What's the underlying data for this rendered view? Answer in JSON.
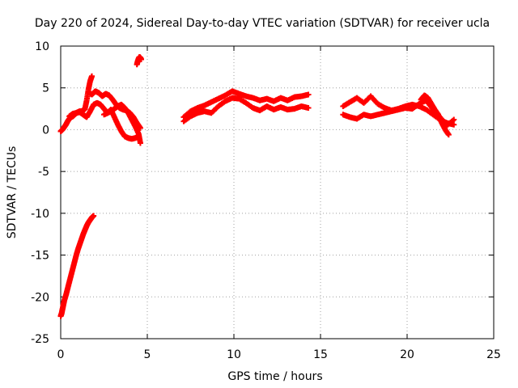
{
  "chart_data": {
    "type": "scatter",
    "title": "Day 220 of 2024, Sidereal Day-to-day VTEC variation (SDTVAR) for receiver ucla",
    "xlabel": "GPS time / hours",
    "ylabel": "SDTVAR / TECUs",
    "xlim": [
      0,
      25
    ],
    "ylim": [
      -25,
      10
    ],
    "xticks": [
      "0",
      "5",
      "10",
      "15",
      "20",
      "25"
    ],
    "yticks": [
      "10",
      "5",
      "0",
      "-5",
      "-10",
      "-15",
      "-20",
      "-25"
    ],
    "xtick_values": [
      0,
      5,
      10,
      15,
      20,
      25
    ],
    "ytick_values": [
      10,
      5,
      0,
      -5,
      -10,
      -15,
      -20,
      -25
    ],
    "grid": true,
    "marker": "plus",
    "series": [
      {
        "name": "SDTVAR",
        "color": "#ff0000",
        "segments": [
          {
            "x": [
              0.0,
              0.05,
              0.1,
              0.15,
              0.2,
              0.3,
              0.4,
              0.5,
              0.6,
              0.7,
              0.8,
              0.9,
              1.0,
              1.1,
              1.2,
              1.3,
              1.4,
              1.5,
              1.6,
              1.7,
              1.8,
              1.9
            ],
            "y": [
              -22.3,
              -22.0,
              -21.5,
              -21.0,
              -20.5,
              -19.8,
              -19.0,
              -18.2,
              -17.4,
              -16.6,
              -15.8,
              -15.0,
              -14.3,
              -13.7,
              -13.1,
              -12.5,
              -12.0,
              -11.5,
              -11.1,
              -10.8,
              -10.5,
              -10.3
            ]
          },
          {
            "x": [
              0.0,
              0.1,
              0.2,
              0.3,
              0.4,
              0.5,
              0.6,
              0.7,
              0.8,
              0.9,
              1.0,
              1.1,
              1.2,
              1.3,
              1.4,
              1.5,
              1.6,
              1.7,
              1.8
            ],
            "y": [
              -0.2,
              0.0,
              0.3,
              0.6,
              1.0,
              1.3,
              1.5,
              1.6,
              1.8,
              2.0,
              2.1,
              2.2,
              2.2,
              2.3,
              2.5,
              3.5,
              4.8,
              5.8,
              6.4
            ]
          },
          {
            "x": [
              0.5,
              0.7,
              0.9,
              1.1,
              1.3,
              1.5,
              1.7,
              1.9,
              2.1,
              2.3,
              2.5,
              2.7,
              2.9,
              3.1,
              3.3,
              3.5,
              3.7,
              3.9,
              4.1,
              4.3,
              4.5,
              4.6
            ],
            "y": [
              1.6,
              1.9,
              2.0,
              2.1,
              1.8,
              1.5,
              2.2,
              3.0,
              3.2,
              3.0,
              2.5,
              2.0,
              2.2,
              2.5,
              2.8,
              3.0,
              2.6,
              2.0,
              1.2,
              0.4,
              -0.5,
              -1.6
            ]
          },
          {
            "x": [
              1.6,
              1.8,
              2.0,
              2.2,
              2.4,
              2.6,
              2.8,
              3.0,
              3.2,
              3.4,
              3.6,
              3.8,
              4.0,
              4.2,
              4.4,
              4.6
            ],
            "y": [
              4.5,
              4.2,
              4.6,
              4.4,
              4.0,
              4.3,
              4.1,
              3.6,
              3.0,
              2.6,
              2.4,
              2.3,
              2.0,
              1.5,
              0.8,
              0.2
            ]
          },
          {
            "x": [
              2.5,
              2.7,
              2.9,
              3.1,
              3.3,
              3.5,
              3.7,
              3.9,
              4.1,
              4.3,
              4.5
            ],
            "y": [
              1.8,
              2.0,
              2.4,
              1.5,
              0.6,
              -0.2,
              -0.8,
              -1.0,
              -1.1,
              -1.0,
              -0.8
            ]
          },
          {
            "x": [
              4.4,
              4.45,
              4.5,
              4.55,
              4.6,
              4.65
            ],
            "y": [
              7.8,
              8.2,
              8.5,
              8.7,
              8.6,
              8.4
            ]
          },
          {
            "x": [
              7.1,
              7.5,
              7.9,
              8.3,
              8.7,
              9.1,
              9.5,
              9.9,
              10.3,
              10.7,
              11.1,
              11.5,
              11.9,
              12.3,
              12.7,
              13.1,
              13.5,
              13.9,
              14.3
            ],
            "y": [
              1.5,
              2.2,
              2.6,
              2.9,
              3.3,
              3.7,
              4.1,
              4.6,
              4.3,
              4.0,
              3.8,
              3.5,
              3.7,
              3.4,
              3.8,
              3.5,
              3.9,
              4.0,
              4.2
            ]
          },
          {
            "x": [
              7.1,
              7.5,
              7.9,
              8.3,
              8.7,
              9.1,
              9.5,
              9.9,
              10.3,
              10.7,
              11.1,
              11.5,
              11.9,
              12.3,
              12.7,
              13.1,
              13.5,
              13.9,
              14.3
            ],
            "y": [
              1.0,
              1.6,
              2.0,
              2.2,
              2.0,
              2.8,
              3.4,
              3.8,
              3.7,
              3.2,
              2.6,
              2.3,
              2.8,
              2.4,
              2.7,
              2.4,
              2.5,
              2.8,
              2.6
            ]
          },
          {
            "x": [
              16.3,
              16.7,
              17.1,
              17.5,
              17.9,
              18.3,
              18.7,
              19.1,
              19.5,
              19.9,
              20.3,
              20.7,
              21.1,
              21.5,
              21.9,
              22.3,
              22.7
            ],
            "y": [
              2.8,
              3.3,
              3.8,
              3.2,
              4.0,
              3.1,
              2.6,
              2.3,
              2.5,
              2.8,
              3.0,
              2.8,
              2.4,
              1.8,
              1.2,
              0.8,
              0.6
            ]
          },
          {
            "x": [
              16.3,
              16.7,
              17.1,
              17.5,
              17.9,
              18.3,
              18.7,
              19.1,
              19.5,
              19.9,
              20.3,
              20.7,
              21.1,
              21.5,
              21.9,
              22.3,
              22.7
            ],
            "y": [
              1.8,
              1.5,
              1.3,
              1.8,
              1.6,
              1.8,
              2.0,
              2.2,
              2.4,
              2.6,
              2.5,
              3.1,
              3.5,
              2.4,
              1.5,
              0.5,
              1.2
            ]
          },
          {
            "x": [
              20.8,
              21.0,
              21.2,
              21.4,
              21.6,
              21.8,
              22.0,
              22.2,
              22.4
            ],
            "y": [
              3.6,
              4.1,
              3.8,
              3.1,
              2.4,
              1.8,
              0.8,
              0.0,
              -0.6
            ]
          }
        ]
      }
    ]
  }
}
